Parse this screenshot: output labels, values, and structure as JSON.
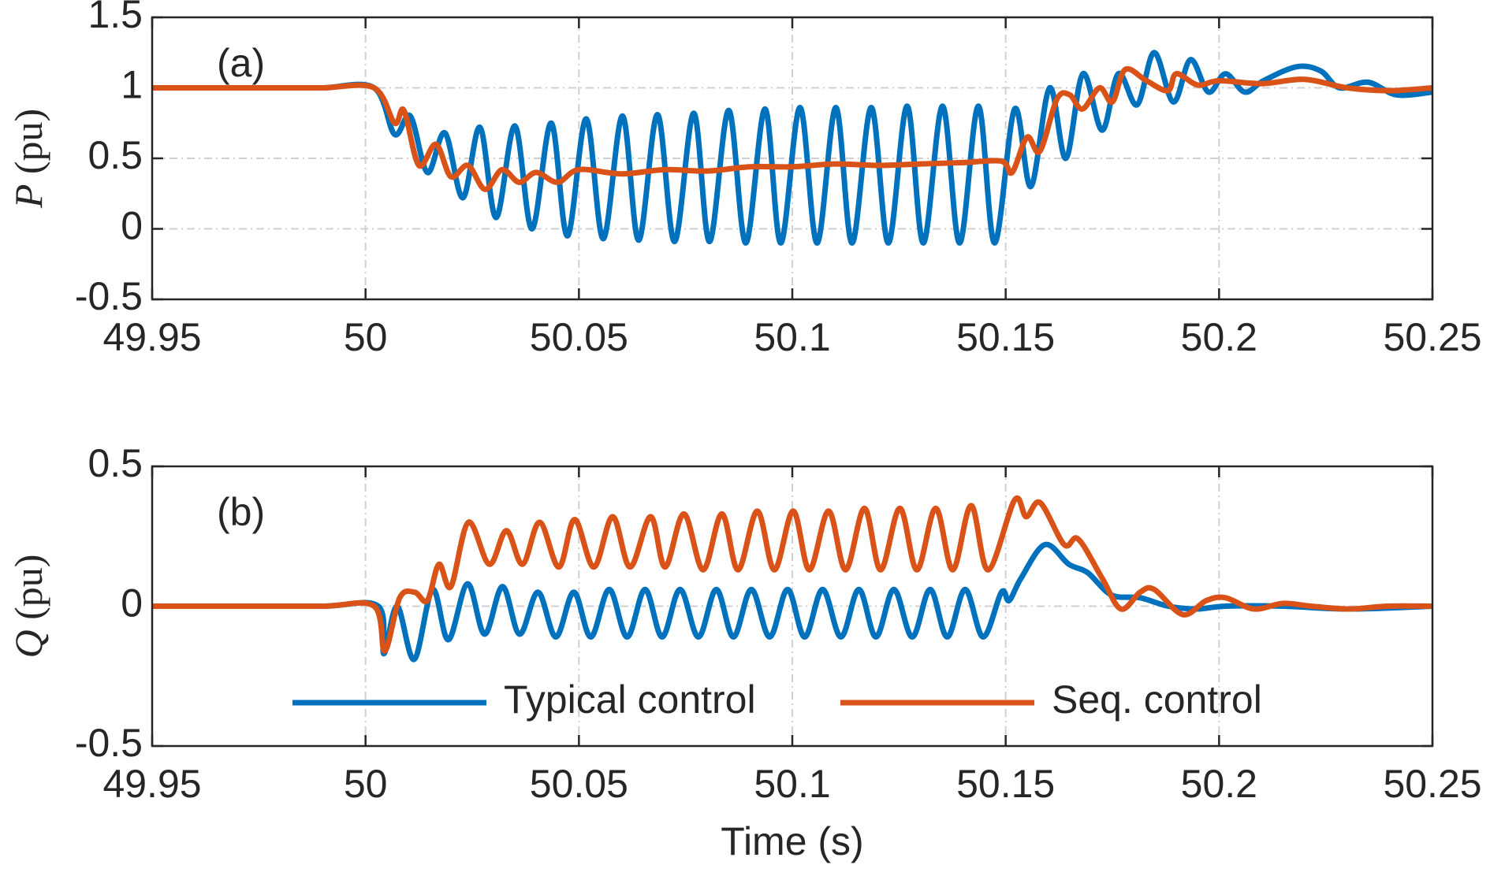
{
  "chart_data": [
    {
      "type": "line",
      "title": "(a)",
      "ylabel_symbol": "P",
      "ylabel_unit": "(pu)",
      "xlim": [
        49.95,
        50.25
      ],
      "xticks": [
        49.95,
        50,
        50.05,
        50.1,
        50.15,
        50.2,
        50.25
      ],
      "ylim": [
        -0.5,
        1.5
      ],
      "yticks": [
        1.5,
        1,
        0.5,
        0,
        -0.5
      ],
      "grid": true,
      "series": [
        {
          "name": "Typical control",
          "color": "#0072BD",
          "x": [
            49.95,
            49.96,
            49.97,
            49.98,
            49.99,
            50.002,
            50.0068,
            50.0105,
            50.0145,
            50.0186,
            50.0228,
            50.0268,
            50.0306,
            50.035,
            50.039,
            50.0435,
            50.0473,
            50.0517,
            50.0557,
            50.0602,
            50.064,
            50.0684,
            50.0724,
            50.0769,
            50.0806,
            50.0851,
            50.0891,
            50.0936,
            50.0973,
            50.1018,
            50.1058,
            50.1102,
            50.114,
            50.1185,
            50.1225,
            50.1269,
            50.1307,
            50.1352,
            50.1392,
            50.1436,
            50.1474,
            50.1521,
            50.1559,
            50.1603,
            50.1641,
            50.1681,
            50.1726,
            50.1764,
            50.1808,
            50.1848,
            50.1893,
            50.1933,
            50.1975,
            50.2015,
            50.206,
            50.2104,
            50.2182,
            50.2238,
            50.2282,
            50.2349,
            50.2416,
            50.25
          ],
          "values": [
            1,
            1,
            1,
            1,
            1,
            1,
            0.67,
            0.8,
            0.4,
            0.68,
            0.22,
            0.72,
            0.08,
            0.73,
            0.0,
            0.75,
            -0.05,
            0.78,
            -0.07,
            0.8,
            -0.08,
            0.81,
            -0.09,
            0.82,
            -0.09,
            0.84,
            -0.1,
            0.85,
            -0.1,
            0.86,
            -0.1,
            0.86,
            -0.1,
            0.86,
            -0.1,
            0.87,
            -0.1,
            0.87,
            -0.1,
            0.87,
            -0.1,
            0.85,
            0.3,
            1.0,
            0.5,
            1.1,
            0.7,
            1.1,
            0.88,
            1.25,
            0.9,
            1.2,
            0.97,
            1.1,
            0.97,
            1.05,
            1.15,
            1.12,
            1.0,
            1.04,
            0.95,
            0.97
          ]
        },
        {
          "name": "Seq. control",
          "color": "#D95319",
          "x": [
            49.95,
            49.96,
            49.97,
            49.98,
            49.99,
            50.002,
            50.0068,
            50.009,
            50.0125,
            50.0165,
            50.02,
            50.024,
            50.028,
            50.032,
            50.036,
            50.04,
            50.045,
            50.05,
            50.06,
            50.07,
            50.08,
            50.09,
            50.1,
            50.11,
            50.12,
            50.13,
            50.14,
            50.149,
            50.1515,
            50.155,
            50.158,
            50.162,
            50.165,
            50.168,
            50.172,
            50.175,
            50.178,
            50.183,
            50.188,
            50.19,
            50.195,
            50.2,
            50.21,
            50.22,
            50.23,
            50.24,
            50.25
          ],
          "values": [
            1,
            1,
            1,
            1,
            1,
            1,
            0.75,
            0.84,
            0.45,
            0.6,
            0.37,
            0.45,
            0.28,
            0.42,
            0.33,
            0.4,
            0.33,
            0.42,
            0.39,
            0.42,
            0.41,
            0.44,
            0.44,
            0.46,
            0.45,
            0.46,
            0.47,
            0.48,
            0.4,
            0.65,
            0.55,
            0.92,
            0.95,
            0.85,
            1.0,
            0.9,
            1.13,
            1.05,
            0.98,
            1.1,
            1.02,
            1.05,
            1.03,
            1.06,
            1.0,
            0.98,
            1.0
          ]
        }
      ]
    },
    {
      "type": "line",
      "title": "(b)",
      "ylabel_symbol": "Q",
      "ylabel_unit": "(pu)",
      "xlabel": "Time (s)",
      "xlim": [
        49.95,
        50.25
      ],
      "xticks": [
        49.95,
        50,
        50.05,
        50.1,
        50.15,
        50.2,
        50.25
      ],
      "ylim": [
        -0.5,
        0.5
      ],
      "yticks": [
        0.5,
        0,
        -0.5
      ],
      "grid": true,
      "legend": "bottom",
      "series": [
        {
          "name": "Typical control",
          "color": "#0072BD",
          "x": [
            49.95,
            49.97,
            49.99,
            50.003,
            50.0043,
            50.0074,
            50.0114,
            50.0157,
            50.0194,
            50.0239,
            50.0279,
            50.0321,
            50.0361,
            50.0404,
            50.0446,
            50.0488,
            50.0528,
            50.0571,
            50.0613,
            50.0655,
            50.0695,
            50.0737,
            50.078,
            50.0822,
            50.0862,
            50.0904,
            50.0947,
            50.0989,
            50.1029,
            50.1071,
            50.1114,
            50.1156,
            50.1196,
            50.1238,
            50.1281,
            50.1323,
            50.1363,
            50.1405,
            50.1447,
            50.149,
            50.1508,
            50.1536,
            50.1592,
            50.1648,
            50.1692,
            50.1748,
            50.1815,
            50.1881,
            50.1948,
            50.2015,
            50.2149,
            50.2305,
            50.25
          ],
          "values": [
            0,
            0,
            0,
            0,
            -0.17,
            0.0,
            -0.19,
            0.06,
            -0.12,
            0.08,
            -0.1,
            0.07,
            -0.1,
            0.05,
            -0.11,
            0.05,
            -0.11,
            0.06,
            -0.11,
            0.06,
            -0.11,
            0.06,
            -0.11,
            0.06,
            -0.11,
            0.06,
            -0.11,
            0.06,
            -0.11,
            0.06,
            -0.11,
            0.06,
            -0.11,
            0.06,
            -0.11,
            0.06,
            -0.11,
            0.06,
            -0.11,
            0.05,
            0.02,
            0.1,
            0.22,
            0.15,
            0.12,
            0.04,
            0.03,
            0.0,
            -0.01,
            0.0,
            0.0,
            -0.01,
            0.0
          ]
        },
        {
          "name": "Seq. control",
          "color": "#D95319",
          "x": [
            49.95,
            49.97,
            49.99,
            50.002,
            50.0045,
            50.008,
            50.0115,
            50.0145,
            50.0172,
            50.02,
            50.0241,
            50.029,
            50.033,
            50.0368,
            50.0408,
            50.0453,
            50.049,
            50.0535,
            50.0579,
            50.062,
            50.0668,
            50.0702,
            50.0746,
            50.0791,
            50.0835,
            50.0873,
            50.0918,
            50.0958,
            50.1002,
            50.104,
            50.1085,
            50.1125,
            50.1169,
            50.1207,
            50.1252,
            50.1292,
            50.1336,
            50.1376,
            50.1419,
            50.1459,
            50.1521,
            50.1548,
            50.1581,
            50.1637,
            50.167,
            50.1726,
            50.177,
            50.1815,
            50.1848,
            50.1915,
            50.197,
            50.2015,
            50.2082,
            50.2149,
            50.2216,
            50.2305,
            50.2394,
            50.25
          ],
          "values": [
            0,
            0,
            0,
            0,
            -0.16,
            0.03,
            0.05,
            0.02,
            0.15,
            0.07,
            0.3,
            0.15,
            0.27,
            0.15,
            0.3,
            0.14,
            0.31,
            0.14,
            0.32,
            0.14,
            0.32,
            0.14,
            0.33,
            0.13,
            0.33,
            0.13,
            0.34,
            0.13,
            0.34,
            0.13,
            0.34,
            0.13,
            0.35,
            0.13,
            0.35,
            0.13,
            0.35,
            0.13,
            0.36,
            0.13,
            0.38,
            0.32,
            0.37,
            0.22,
            0.24,
            0.1,
            -0.01,
            0.05,
            0.06,
            -0.03,
            0.02,
            0.03,
            -0.01,
            0.01,
            0.0,
            -0.01,
            0.0,
            0.0
          ]
        }
      ]
    }
  ]
}
